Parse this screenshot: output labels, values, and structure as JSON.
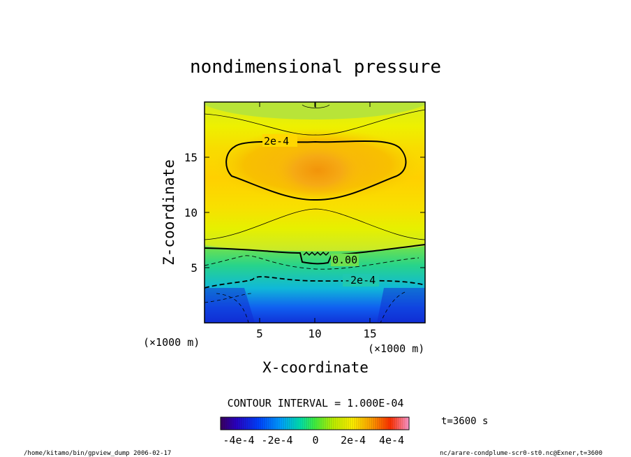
{
  "chart_data": {
    "type": "heatmap",
    "title": "nondimensional pressure",
    "xlabel": "X-coordinate",
    "ylabel": "Z-coordinate",
    "x_unit": "(×1000 m)",
    "z_unit": "(×1000 m)",
    "xlim": [
      0,
      20
    ],
    "ylim": [
      0,
      20
    ],
    "x_ticks": [
      5,
      10,
      15
    ],
    "y_ticks": [
      5,
      10,
      15
    ],
    "contour_interval_label": "CONTOUR INTERVAL = 1.000E-04",
    "contour_labels": [
      {
        "text": "2e-4",
        "x": 6.5,
        "z": 16.6
      },
      {
        "text": "0.00",
        "x": 12.5,
        "z": 5.6
      },
      {
        "text": "-2e-4",
        "x": 14.0,
        "z": 3.8
      }
    ],
    "colorbar": {
      "min": -0.0004,
      "max": 0.0004,
      "tick_labels": [
        "-4e-4",
        "-2e-4",
        "0",
        "2e-4",
        "4e-4"
      ],
      "tick_values": [
        -0.0004,
        -0.0002,
        0,
        0.0002,
        0.0004
      ]
    },
    "time_label": "t=3600 s",
    "footer_left": "/home/kitamo/bin/gpview_dump  2006-02-17",
    "footer_right": "nc/arare-condplume-scr0-st0.nc@Exner,t=3600"
  }
}
